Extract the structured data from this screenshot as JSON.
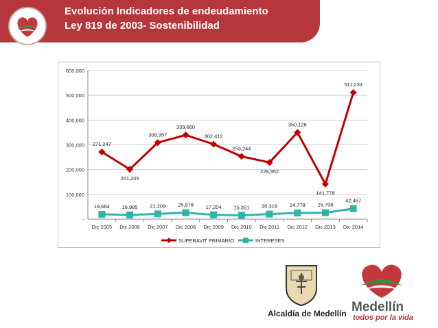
{
  "header": {
    "title_line1": "Evolución Indicadores de endeudamiento",
    "title_line2": "Ley 819 de 2003- Sostenibilidad"
  },
  "footer": {
    "alcaldia": "Alcaldía de Medellín",
    "city": "Medellín",
    "tagline": "todos por la vida"
  },
  "colors": {
    "banner": "#b5363b",
    "series1": "#c00000",
    "series2": "#2cb5a8"
  },
  "chart_data": {
    "type": "line",
    "categories": [
      "Dic 2005",
      "Dic 2006",
      "Dic 2007",
      "Dic 2008",
      "Dic 2009",
      "Dic 2010",
      "Dic 2011",
      "Dic 2012",
      "Dic 2013",
      "Dic 2014"
    ],
    "series": [
      {
        "name": "SUPERAVIT PRIMARIO",
        "values": [
          271247,
          201205,
          308957,
          339660,
          302412,
          253244,
          228952,
          350126,
          141778,
          511233
        ],
        "labels": [
          "271,247",
          "201,205",
          "308,957",
          "339,660",
          "302,412",
          "253,244",
          "228,952",
          "350,126",
          "141,778",
          "511,233"
        ]
      },
      {
        "name": "INTERESES",
        "values": [
          19664,
          16985,
          21209,
          25978,
          17204,
          15351,
          20319,
          24778,
          25708,
          42467
        ],
        "labels": [
          "19,664",
          "16,985",
          "21,209",
          "25,978",
          "17,204",
          "15,351",
          "20,319",
          "24,778",
          "25,708",
          "42,467"
        ]
      }
    ],
    "yticks": [
      "-",
      "100,000",
      "200,000",
      "300,000",
      "400,000",
      "500,000",
      "600,000"
    ],
    "ylim": [
      0,
      600000
    ],
    "legend_position": "bottom"
  }
}
